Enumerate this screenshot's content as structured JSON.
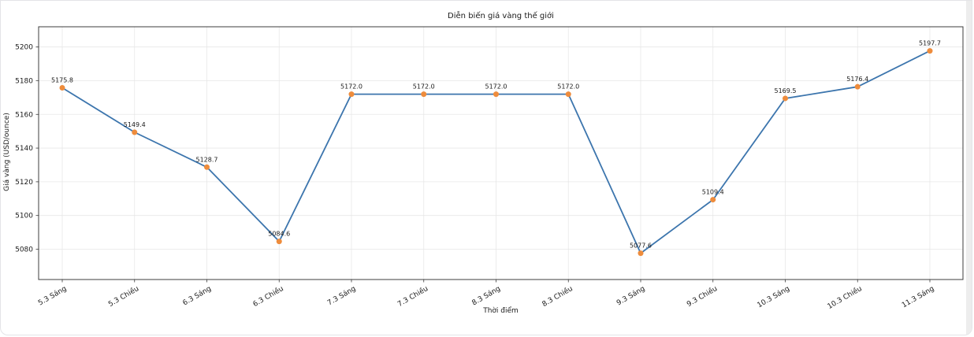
{
  "chart_data": {
    "type": "line",
    "title": "Diễn biến giá vàng thế giới",
    "xlabel": "Thời điểm",
    "ylabel": "Giá vàng (USD/ounce)",
    "categories": [
      "5.3 Sáng",
      "5.3 Chiều",
      "6.3 Sáng",
      "6.3 Chiều",
      "7.3 Sáng",
      "7.3 Chiều",
      "8.3 Sáng",
      "8.3 Chiều",
      "9.3 Sáng",
      "9.3 Chiều",
      "10.3 Sáng",
      "10.3 Chiều",
      "11.3 Sáng"
    ],
    "values": [
      5175.8,
      5149.4,
      5128.7,
      5084.6,
      5172.0,
      5172.0,
      5172.0,
      5172.0,
      5077.6,
      5109.4,
      5169.5,
      5176.4,
      5197.7
    ],
    "yticks": [
      5080,
      5100,
      5120,
      5140,
      5160,
      5180,
      5200
    ],
    "ylim": [
      5062,
      5212
    ],
    "grid": true,
    "legend": "none",
    "x_tick_rotation_deg": 30,
    "point_labels_decimals": 1,
    "line_color": "#3c75ad",
    "marker_color": "#ee8c3c",
    "grid_color": "#e7e7e7",
    "spine_color": "#3c3c3c",
    "text_color": "#1a1a1a"
  }
}
